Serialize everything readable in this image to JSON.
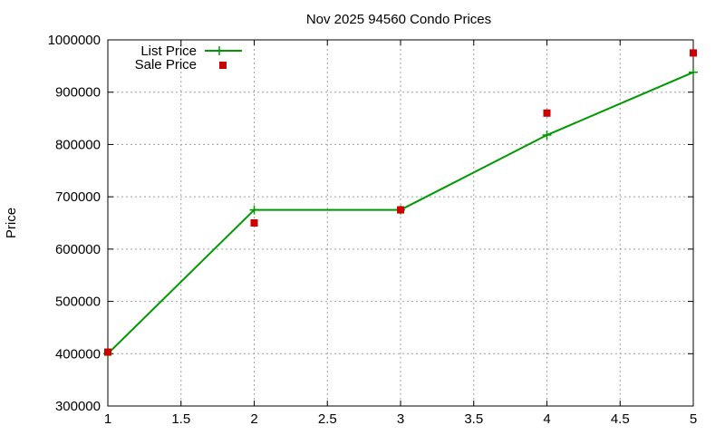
{
  "chart_data": {
    "type": "line",
    "title": "Nov 2025 94560 Condo Prices",
    "xlabel": "",
    "ylabel": "Price",
    "xlim": [
      1,
      5
    ],
    "ylim": [
      300000,
      1000000
    ],
    "xticks": [
      "1",
      "1.5",
      "2",
      "2.5",
      "3",
      "3.5",
      "4",
      "4.5",
      "5"
    ],
    "yticks": [
      "300000",
      "400000",
      "500000",
      "600000",
      "700000",
      "800000",
      "900000",
      "1000000"
    ],
    "grid": true,
    "legend_position": "top-left",
    "series": [
      {
        "name": "List Price",
        "style": "line-with-plus-markers",
        "color": "#009900",
        "x": [
          1,
          2,
          3,
          4,
          5
        ],
        "y": [
          400000,
          675000,
          675000,
          818000,
          938000
        ]
      },
      {
        "name": "Sale Price",
        "style": "square-markers",
        "color": "#cc0000",
        "x": [
          1,
          2,
          3,
          4,
          5
        ],
        "y": [
          403000,
          650000,
          675000,
          860000,
          975000
        ]
      }
    ]
  }
}
